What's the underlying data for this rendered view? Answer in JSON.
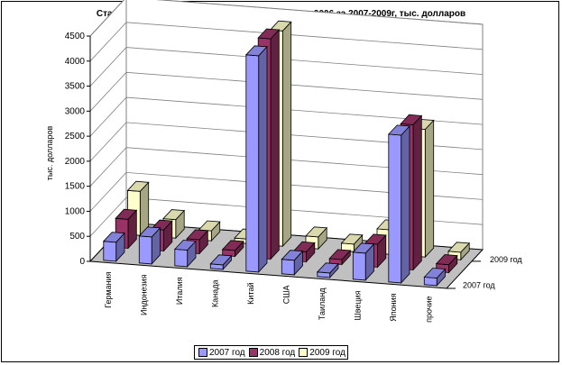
{
  "chart_data": {
    "type": "bar",
    "title": "Статистика импрота товаров товарной позиции 9006 за 2007-2009г, тыс. долларов",
    "ylabel": "тыс. долларов",
    "xlabel": "",
    "ylim": [
      0,
      4500
    ],
    "yticks": [
      "0",
      "500",
      "1000",
      "1500",
      "2000",
      "2500",
      "3000",
      "3500",
      "4000",
      "4500"
    ],
    "grid": true,
    "legend_position": "bottom",
    "categories": [
      "Германия",
      "Индонезия",
      "Италия",
      "Канада",
      "Китай",
      "США",
      "Таиланд",
      "Швеция",
      "Япония",
      "прочие"
    ],
    "series": [
      {
        "name": "2007 год",
        "color": "#9999FF",
        "values": [
          380,
          540,
          330,
          90,
          4320,
          290,
          90,
          540,
          2950,
          150
        ]
      },
      {
        "name": "2008 год",
        "color": "#993366",
        "values": [
          580,
          420,
          280,
          120,
          4400,
          200,
          100,
          460,
          2900,
          160
        ]
      },
      {
        "name": "2009 год",
        "color": "#FFFFCC",
        "values": [
          880,
          370,
          200,
          90,
          4300,
          240,
          150,
          490,
          2550,
          150
        ]
      }
    ],
    "depth_labels": [
      "2009 год",
      "2007 год"
    ]
  }
}
